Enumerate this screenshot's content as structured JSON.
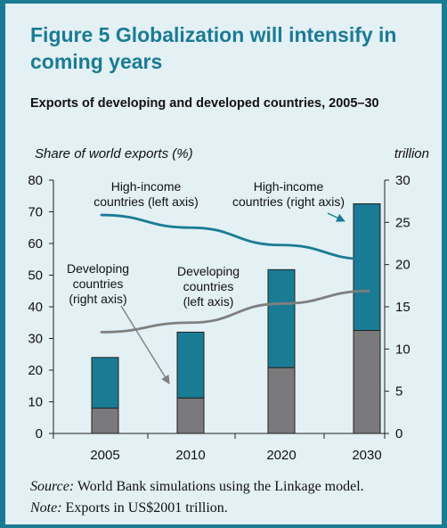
{
  "figure": {
    "title": "Figure 5  Globalization will intensify in coming years",
    "subtitle": "Exports of developing and developed countries, 2005–30",
    "source_label": "Source:",
    "source_text": " World Bank simulations using the Linkage model.",
    "note_label": "Note:",
    "note_text": " Exports in US$2001 trillion."
  },
  "chart_data": {
    "type": "bar",
    "stacked": true,
    "categories": [
      "2005",
      "2010",
      "2020",
      "2030"
    ],
    "left_axis": {
      "label": "Share of world exports (%)",
      "ylim": [
        0,
        80
      ],
      "ticks": [
        0,
        10,
        20,
        30,
        40,
        50,
        60,
        70,
        80
      ]
    },
    "right_axis": {
      "label": "trillion",
      "ylim": [
        0,
        30
      ],
      "ticks": [
        0,
        5,
        10,
        15,
        20,
        25,
        30
      ]
    },
    "bar_series": [
      {
        "name": "Developing countries (right axis)",
        "axis": "right",
        "color": "#7a7a7c",
        "values": [
          3.0,
          4.2,
          7.8,
          12.2
        ]
      },
      {
        "name": "High-income countries (right axis)",
        "axis": "right",
        "color": "#1a7b95",
        "values": [
          6.0,
          7.8,
          11.6,
          15.0
        ]
      }
    ],
    "line_series": [
      {
        "name": "High-income countries (left axis)",
        "axis": "left",
        "color": "#1a7b95",
        "values": [
          69,
          65,
          59.5,
          55
        ]
      },
      {
        "name": "Developing countries (left axis)",
        "axis": "left",
        "color": "#7f7f7f",
        "values": [
          32,
          35,
          41,
          45
        ]
      }
    ],
    "annotations": [
      "High-income countries (left axis)",
      "High-income countries (right axis)",
      "Developing countries (right axis)",
      "Developing countries (left axis)"
    ],
    "grid": false,
    "legend": "none"
  }
}
